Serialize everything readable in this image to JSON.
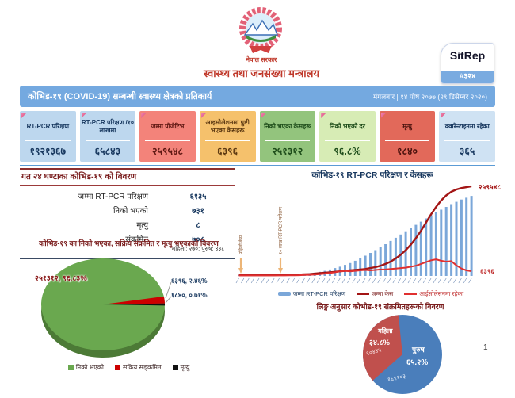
{
  "header": {
    "govt_label": "नेपाल सरकार",
    "ministry": "स्वास्थ्य तथा जनसंख्या मन्त्रालय",
    "sitrep_label": "SitRep",
    "sitrep_number": "#३२४",
    "sitrep_strip_color": "#7aabe0"
  },
  "title_bar": {
    "title": "कोभिड-१९ (COVID-19) सम्बन्धी स्वास्थ्य क्षेत्रको प्रतिकार्य",
    "date": "मंगलबार | १४ पौष २०७७ (२९ डिसेम्बर २०२०)",
    "bg": "#74a9e0"
  },
  "stat_cards": [
    {
      "label": "RT-PCR परिक्षण",
      "value": "१९२१३६७",
      "bg": "#bdd7ee",
      "text": "#17375e"
    },
    {
      "label": "RT-PCR परिक्षण /१० लाखमा",
      "value": "६५८४३",
      "bg": "#bdd7ee",
      "text": "#17375e"
    },
    {
      "label": "जम्मा पोजेटिभ",
      "value": "२५९५४८",
      "bg": "#f3837a",
      "text": "#5e1712"
    },
    {
      "label": "आइसोलेशनमा पुष्टी भएका केसहरू",
      "value": "६३९६",
      "bg": "#f5c16c",
      "text": "#5e3a12"
    },
    {
      "label": "निको भएका केसहरू",
      "value": "२५१३१२",
      "bg": "#93c47d",
      "text": "#1e4d1a"
    },
    {
      "label": "निको भएको दर",
      "value": "९६.८%",
      "bg": "#d7ecb5",
      "text": "#1e4d1a"
    },
    {
      "label": "मृत्यु",
      "value": "१८४०",
      "bg": "#e2695a",
      "text": "#4a120d"
    },
    {
      "label": "क्वारेन्टाइनमा रहेका",
      "value": "३६५",
      "bg": "#cfe2f3",
      "text": "#17375e"
    }
  ],
  "last24": {
    "title": "गत २४ घण्टाका कोभिड-१९ को विवरण",
    "rows": [
      {
        "label": "जम्मा RT-PCR परिक्षण",
        "value": "६१३५",
        "sub": ""
      },
      {
        "label": "निको भएको",
        "value": "७३१",
        "sub": ""
      },
      {
        "label": "मृत्यु",
        "value": "८",
        "sub": ""
      },
      {
        "label": "संक्रमित",
        "value": "७०८",
        "sub": "महिला: २७०; पुरुष: ४३८"
      }
    ]
  },
  "chart_data": [
    {
      "type": "bar",
      "title": "कोभिड-१९ RT-PCR परिक्षण र केसहरू",
      "x_tick_count": 47,
      "annotations": [
        "पहिलो केस",
        "१० लाख RT-PCR परीक्षण"
      ],
      "legend_position": "bottom",
      "series": [
        {
          "name": "जम्मा RT-PCR परिक्षण",
          "kind": "bar",
          "color": "#7ba7d9",
          "values_pct": [
            1,
            1,
            1,
            1,
            1,
            1,
            1,
            1,
            1.2,
            1.5,
            1.5,
            2,
            2,
            2.5,
            3,
            3.5,
            4.5,
            5.5,
            7,
            8.5,
            10,
            12,
            14,
            16.5,
            19,
            22,
            25,
            28,
            31,
            34.5,
            38,
            41.5,
            45,
            48.5,
            52,
            55.5,
            59,
            62.5,
            66,
            69,
            72,
            75,
            78,
            80.5,
            83,
            85,
            87
          ]
        },
        {
          "name": "जम्मा केस",
          "kind": "line",
          "color": "#a31515",
          "end_label": "२५९५४८",
          "values_pct": [
            0.8,
            0.8,
            0.8,
            0.8,
            0.8,
            0.8,
            0.8,
            0.8,
            1,
            1,
            1,
            1.2,
            1.5,
            1.8,
            2,
            2.5,
            3,
            3.5,
            4,
            4.5,
            5,
            5.5,
            6,
            6.5,
            7,
            7.5,
            8.5,
            9.5,
            11,
            13,
            15.5,
            19,
            23,
            28,
            34,
            41,
            49,
            58,
            67,
            75,
            82,
            87.5,
            91.5,
            94,
            95.5,
            96.5,
            97.5
          ]
        },
        {
          "name": "आईसोलेसनमा रहेका",
          "kind": "line",
          "color": "#e03030",
          "end_label": "६३९६",
          "values_pct": [
            0.5,
            0.5,
            0.5,
            0.5,
            0.5,
            0.5,
            0.5,
            0.5,
            0.5,
            0.5,
            0.6,
            0.7,
            0.8,
            1,
            1.2,
            1.5,
            2,
            2.5,
            3.2,
            4,
            5,
            5.5,
            5,
            5.5,
            6,
            6.5,
            6,
            6.5,
            7,
            7,
            7.5,
            8,
            8.5,
            9,
            10,
            11,
            13,
            15,
            17,
            18,
            16.5,
            15.5,
            16,
            11.5,
            8,
            6,
            5
          ]
        }
      ]
    },
    {
      "type": "pie",
      "title": "कोभिड-१९ का निको भएका, सक्रिय संक्रमित र मृत्यु भएकाको विवरण",
      "style": "3d",
      "slices": [
        {
          "label": "निको भएको",
          "value": 251312,
          "pct": 96.83,
          "display": "२५१३१२, ९६.८३%",
          "color": "#6aa84f",
          "rim_color": "#4c7a36"
        },
        {
          "label": "सक्रिय सङ्क्रमित",
          "value": 6396,
          "pct": 2.46,
          "display": "६३९६, २.४६%",
          "color": "#cc0000"
        },
        {
          "label": "मृत्यु",
          "value": 1840,
          "pct": 0.71,
          "display": "१८४०, ०.७१%",
          "color": "#111111"
        }
      ]
    },
    {
      "type": "pie",
      "title": "लिङ्ग अनुसार कोभीड-१९ संक्रमितहरूको विवरण",
      "slices": [
        {
          "label": "महिला",
          "pct": 34.8,
          "pct_display": "३४.८%",
          "count_display": "९०४४५",
          "color": "#c0504d"
        },
        {
          "label": "पुरुष",
          "pct": 65.2,
          "pct_display": "६५.२%",
          "count_display": "१६९१०३",
          "color": "#4a7ebb"
        }
      ]
    }
  ],
  "page_number": "1"
}
